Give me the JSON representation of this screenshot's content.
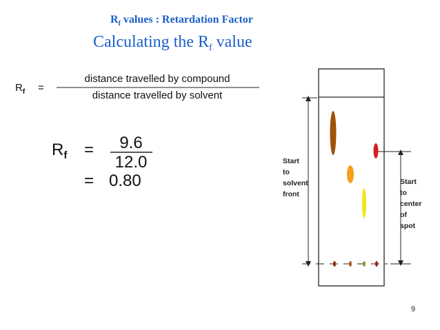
{
  "header": {
    "subtitle": {
      "main": "R",
      "sub": "f",
      "rest": " values : Retardation Factor"
    },
    "title": {
      "main": "Calculating the R",
      "sub": "f",
      "rest": " value"
    }
  },
  "formula": {
    "lhs": "R",
    "lhs_sub": "f",
    "equals": "=",
    "numerator": "distance travelled by compound",
    "denominator": "distance travelled by solvent"
  },
  "example": {
    "lhs": "R",
    "lhs_sub": "f",
    "equals": "=",
    "numerator": "9.6",
    "denominator": "12.0",
    "equals_2": "=",
    "result": "0.80"
  },
  "diagram": {
    "solvent_label": [
      "Start",
      "to",
      "solvent",
      "front"
    ],
    "spot_label": [
      "Start",
      "to",
      "center",
      "of",
      "spot"
    ]
  },
  "page_number": "9"
}
